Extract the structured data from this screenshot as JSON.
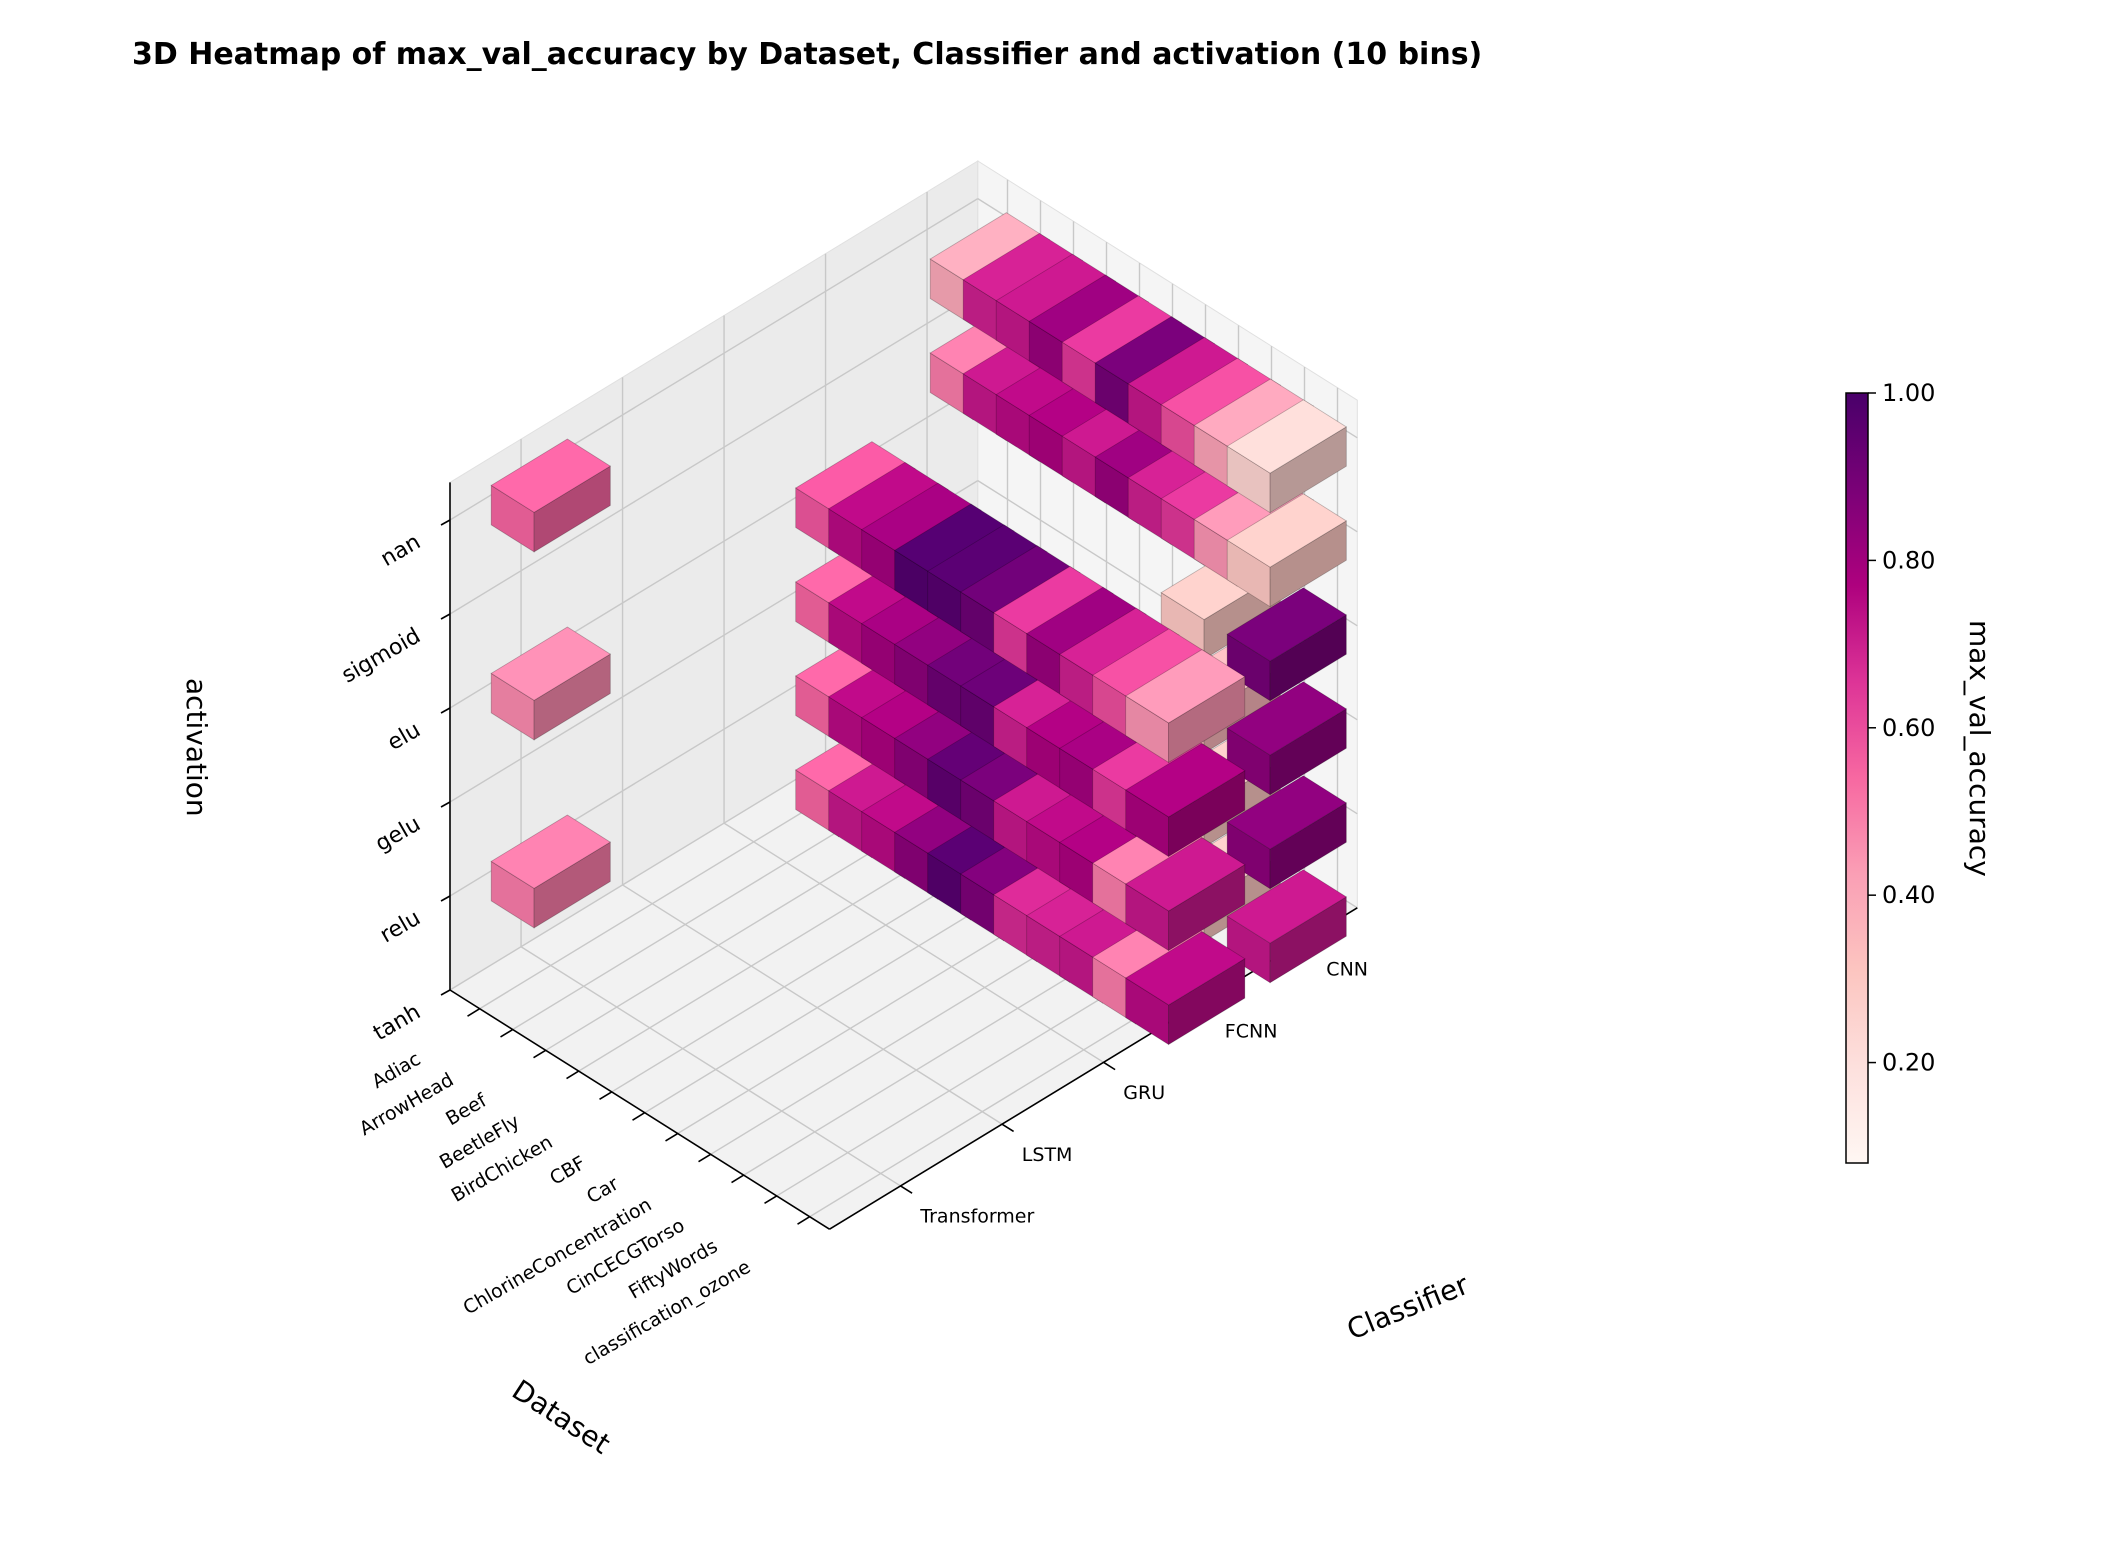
{
  "chart_data": {
    "type": "3d-bar",
    "title": "3D Heatmap of max_val_accuracy by Dataset, Classifier and activation (10 bins)",
    "xlabel": "Dataset",
    "ylabel": "Classifier",
    "zlabel": "activation",
    "datasets": [
      "Adiac",
      "ArrowHead",
      "Beef",
      "BeetleFly",
      "BirdChicken",
      "CBF",
      "Car",
      "ChlorineConcentration",
      "CinCECGTorso",
      "FiftyWords",
      "classification_ozone"
    ],
    "classifiers": [
      "Transformer",
      "LSTM",
      "GRU",
      "FCNN",
      "CNN"
    ],
    "activations": [
      "tanh",
      "relu",
      "gelu",
      "elu",
      "sigmoid",
      "nan"
    ],
    "colorbar": {
      "label": "max_val_accuracy",
      "range": [
        0.08,
        1.0
      ],
      "ticks": [
        0.2,
        0.4,
        0.6,
        0.8,
        1.0
      ],
      "tick_labels": [
        "0.20",
        "0.40",
        "0.60",
        "0.80",
        "1.00"
      ],
      "colormap": "RdPu"
    },
    "bars": [
      {
        "dataset": "Adiac",
        "classifier": "Transformer",
        "activation": "relu",
        "value": 0.5
      },
      {
        "dataset": "Adiac",
        "classifier": "Transformer",
        "activation": "elu",
        "value": 0.47
      },
      {
        "dataset": "Adiac",
        "classifier": "Transformer",
        "activation": "nan",
        "value": 0.55
      },
      {
        "dataset": "Adiac",
        "classifier": "FCNN",
        "activation": "tanh",
        "value": 0.55
      },
      {
        "dataset": "ArrowHead",
        "classifier": "FCNN",
        "activation": "tanh",
        "value": 0.72
      },
      {
        "dataset": "Beef",
        "classifier": "FCNN",
        "activation": "tanh",
        "value": 0.75
      },
      {
        "dataset": "BeetleFly",
        "classifier": "FCNN",
        "activation": "tanh",
        "value": 0.85
      },
      {
        "dataset": "BirdChicken",
        "classifier": "FCNN",
        "activation": "tanh",
        "value": 0.97
      },
      {
        "dataset": "CBF",
        "classifier": "FCNN",
        "activation": "tanh",
        "value": 0.88
      },
      {
        "dataset": "Car",
        "classifier": "FCNN",
        "activation": "tanh",
        "value": 0.68
      },
      {
        "dataset": "ChlorineConcentration",
        "classifier": "FCNN",
        "activation": "tanh",
        "value": 0.7
      },
      {
        "dataset": "CinCECGTorso",
        "classifier": "FCNN",
        "activation": "tanh",
        "value": 0.72
      },
      {
        "dataset": "FiftyWords",
        "classifier": "FCNN",
        "activation": "tanh",
        "value": 0.5
      },
      {
        "dataset": "classification_ozone",
        "classifier": "FCNN",
        "activation": "tanh",
        "value": 0.75
      },
      {
        "dataset": "CinCECGTorso",
        "classifier": "CNN",
        "activation": "tanh",
        "value": 0.3
      },
      {
        "dataset": "classification_ozone",
        "classifier": "CNN",
        "activation": "tanh",
        "value": 0.72
      },
      {
        "dataset": "Adiac",
        "classifier": "FCNN",
        "activation": "relu",
        "value": 0.55
      },
      {
        "dataset": "ArrowHead",
        "classifier": "FCNN",
        "activation": "relu",
        "value": 0.75
      },
      {
        "dataset": "Beef",
        "classifier": "FCNN",
        "activation": "relu",
        "value": 0.78
      },
      {
        "dataset": "BeetleFly",
        "classifier": "FCNN",
        "activation": "relu",
        "value": 0.85
      },
      {
        "dataset": "BirdChicken",
        "classifier": "FCNN",
        "activation": "relu",
        "value": 0.95
      },
      {
        "dataset": "CBF",
        "classifier": "FCNN",
        "activation": "relu",
        "value": 0.9
      },
      {
        "dataset": "Car",
        "classifier": "FCNN",
        "activation": "relu",
        "value": 0.72
      },
      {
        "dataset": "ChlorineConcentration",
        "classifier": "FCNN",
        "activation": "relu",
        "value": 0.75
      },
      {
        "dataset": "CinCECGTorso",
        "classifier": "FCNN",
        "activation": "relu",
        "value": 0.78
      },
      {
        "dataset": "FiftyWords",
        "classifier": "FCNN",
        "activation": "relu",
        "value": 0.5
      },
      {
        "dataset": "classification_ozone",
        "classifier": "FCNN",
        "activation": "relu",
        "value": 0.72
      },
      {
        "dataset": "CinCECGTorso",
        "classifier": "CNN",
        "activation": "relu",
        "value": 0.3
      },
      {
        "dataset": "classification_ozone",
        "classifier": "CNN",
        "activation": "relu",
        "value": 0.85
      },
      {
        "dataset": "Adiac",
        "classifier": "FCNN",
        "activation": "gelu",
        "value": 0.55
      },
      {
        "dataset": "ArrowHead",
        "classifier": "FCNN",
        "activation": "gelu",
        "value": 0.75
      },
      {
        "dataset": "Beef",
        "classifier": "FCNN",
        "activation": "gelu",
        "value": 0.8
      },
      {
        "dataset": "BeetleFly",
        "classifier": "FCNN",
        "activation": "gelu",
        "value": 0.85
      },
      {
        "dataset": "BirdChicken",
        "classifier": "FCNN",
        "activation": "gelu",
        "value": 0.92
      },
      {
        "dataset": "CBF",
        "classifier": "FCNN",
        "activation": "gelu",
        "value": 0.93
      },
      {
        "dataset": "Car",
        "classifier": "FCNN",
        "activation": "gelu",
        "value": 0.7
      },
      {
        "dataset": "ChlorineConcentration",
        "classifier": "FCNN",
        "activation": "gelu",
        "value": 0.78
      },
      {
        "dataset": "CinCECGTorso",
        "classifier": "FCNN",
        "activation": "gelu",
        "value": 0.8
      },
      {
        "dataset": "FiftyWords",
        "classifier": "FCNN",
        "activation": "gelu",
        "value": 0.65
      },
      {
        "dataset": "classification_ozone",
        "classifier": "FCNN",
        "activation": "gelu",
        "value": 0.78
      },
      {
        "dataset": "CinCECGTorso",
        "classifier": "CNN",
        "activation": "gelu",
        "value": 0.35
      },
      {
        "dataset": "classification_ozone",
        "classifier": "CNN",
        "activation": "gelu",
        "value": 0.85
      },
      {
        "dataset": "Adiac",
        "classifier": "FCNN",
        "activation": "elu",
        "value": 0.58
      },
      {
        "dataset": "ArrowHead",
        "classifier": "FCNN",
        "activation": "elu",
        "value": 0.75
      },
      {
        "dataset": "Beef",
        "classifier": "FCNN",
        "activation": "elu",
        "value": 0.8
      },
      {
        "dataset": "BeetleFly",
        "classifier": "FCNN",
        "activation": "elu",
        "value": 0.98
      },
      {
        "dataset": "BirdChicken",
        "classifier": "FCNN",
        "activation": "elu",
        "value": 0.97
      },
      {
        "dataset": "CBF",
        "classifier": "FCNN",
        "activation": "elu",
        "value": 0.92
      },
      {
        "dataset": "Car",
        "classifier": "FCNN",
        "activation": "elu",
        "value": 0.65
      },
      {
        "dataset": "ChlorineConcentration",
        "classifier": "FCNN",
        "activation": "elu",
        "value": 0.82
      },
      {
        "dataset": "CinCECGTorso",
        "classifier": "FCNN",
        "activation": "elu",
        "value": 0.7
      },
      {
        "dataset": "FiftyWords",
        "classifier": "FCNN",
        "activation": "elu",
        "value": 0.6
      },
      {
        "dataset": "classification_ozone",
        "classifier": "FCNN",
        "activation": "elu",
        "value": 0.45
      },
      {
        "dataset": "CinCECGTorso",
        "classifier": "CNN",
        "activation": "elu",
        "value": 0.3
      },
      {
        "dataset": "classification_ozone",
        "classifier": "CNN",
        "activation": "elu",
        "value": 0.9
      },
      {
        "dataset": "ArrowHead",
        "classifier": "CNN",
        "activation": "sigmoid",
        "value": 0.5
      },
      {
        "dataset": "Beef",
        "classifier": "CNN",
        "activation": "sigmoid",
        "value": 0.72
      },
      {
        "dataset": "BeetleFly",
        "classifier": "CNN",
        "activation": "sigmoid",
        "value": 0.75
      },
      {
        "dataset": "BirdChicken",
        "classifier": "CNN",
        "activation": "sigmoid",
        "value": 0.78
      },
      {
        "dataset": "CBF",
        "classifier": "CNN",
        "activation": "sigmoid",
        "value": 0.72
      },
      {
        "dataset": "Car",
        "classifier": "CNN",
        "activation": "sigmoid",
        "value": 0.82
      },
      {
        "dataset": "ChlorineConcentration",
        "classifier": "CNN",
        "activation": "sigmoid",
        "value": 0.7
      },
      {
        "dataset": "CinCECGTorso",
        "classifier": "CNN",
        "activation": "sigmoid",
        "value": 0.65
      },
      {
        "dataset": "FiftyWords",
        "classifier": "CNN",
        "activation": "sigmoid",
        "value": 0.45
      },
      {
        "dataset": "classification_ozone",
        "classifier": "CNN",
        "activation": "sigmoid",
        "value": 0.3
      },
      {
        "dataset": "ArrowHead",
        "classifier": "CNN",
        "activation": "nan",
        "value": 0.4
      },
      {
        "dataset": "Beef",
        "classifier": "CNN",
        "activation": "nan",
        "value": 0.7
      },
      {
        "dataset": "BeetleFly",
        "classifier": "CNN",
        "activation": "nan",
        "value": 0.72
      },
      {
        "dataset": "BirdChicken",
        "classifier": "CNN",
        "activation": "nan",
        "value": 0.82
      },
      {
        "dataset": "CBF",
        "classifier": "CNN",
        "activation": "nan",
        "value": 0.65
      },
      {
        "dataset": "Car",
        "classifier": "CNN",
        "activation": "nan",
        "value": 0.9
      },
      {
        "dataset": "ChlorineConcentration",
        "classifier": "CNN",
        "activation": "nan",
        "value": 0.72
      },
      {
        "dataset": "CinCECGTorso",
        "classifier": "CNN",
        "activation": "nan",
        "value": 0.6
      },
      {
        "dataset": "FiftyWords",
        "classifier": "CNN",
        "activation": "nan",
        "value": 0.42
      },
      {
        "dataset": "classification_ozone",
        "classifier": "CNN",
        "activation": "nan",
        "value": 0.25
      }
    ]
  }
}
